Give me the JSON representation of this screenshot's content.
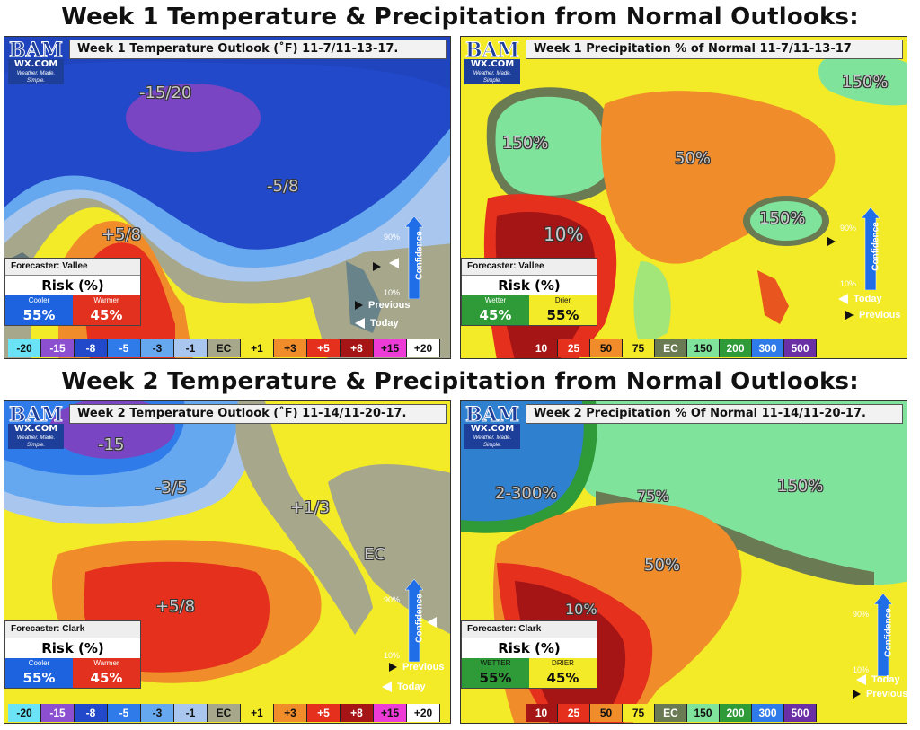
{
  "headings": {
    "week1": "Week 1 Temperature & Precipitation from Normal Outlooks:",
    "week2": "Week 2 Temperature & Precipitation from Normal Outlooks:"
  },
  "logo": {
    "letters": "BAM",
    "wx": "WX.COM",
    "tagline": "Weather. Made. Simple."
  },
  "confidence": {
    "label": "Confidence",
    "high": "90%",
    "low": "10%",
    "previous": "Previous",
    "today": "Today"
  },
  "panels": {
    "w1temp": {
      "title": "Week 1 Temperature Outlook (˚F) 11-7/11-13-17.",
      "labels": [
        "-15/20",
        "-5/8",
        "+5/8"
      ],
      "forecaster": "Forecaster: Vallee",
      "risk_title": "Risk (%)",
      "risk": [
        {
          "label": "Cooler",
          "value": "55%",
          "color": "#1d63e0"
        },
        {
          "label": "Warmer",
          "value": "45%",
          "color": "#e2321f"
        }
      ],
      "legend": [
        "-20",
        "-15",
        "-8",
        "-5",
        "-3",
        "-1",
        "EC",
        "+1",
        "+3",
        "+5",
        "+8",
        "+15",
        "+20"
      ],
      "legend_colors": [
        "#69e3f5",
        "#8b4fd0",
        "#2149c9",
        "#2f7bea",
        "#66a8f0",
        "#a9c6ee",
        "#a7a88b",
        "#f3ea28",
        "#f08c2a",
        "#e5301d",
        "#a61515",
        "#ec3bd7",
        "#ffffff"
      ]
    },
    "w1precip": {
      "title": "Week 1 Precipitation % of Normal 11-7/11-13-17",
      "labels": [
        "150%",
        "150%",
        "50%",
        "10%",
        "150%"
      ],
      "forecaster": "Forecaster: Vallee",
      "risk_title": "Risk (%)",
      "risk": [
        {
          "label": "Wetter",
          "value": "45%",
          "color": "#2e9a38"
        },
        {
          "label": "Drier",
          "value": "55%",
          "color": "#f3ea28"
        }
      ],
      "legend": [
        "10",
        "25",
        "50",
        "75",
        "EC",
        "150",
        "200",
        "300",
        "500"
      ],
      "legend_colors": [
        "#a61515",
        "#e5301d",
        "#f08c2a",
        "#f3ea28",
        "#6a7a52",
        "#7fe39b",
        "#2e9a38",
        "#2f7bea",
        "#6a2fa5"
      ]
    },
    "w2temp": {
      "title": "Week 2 Temperature Outlook (˚F) 11-14/11-20-17.",
      "labels": [
        "-15",
        "-3/5",
        "+1/3",
        "EC",
        "+5/8"
      ],
      "forecaster": "Forecaster: Clark",
      "risk_title": "Risk (%)",
      "risk": [
        {
          "label": "Cooler",
          "value": "55%",
          "color": "#1d63e0"
        },
        {
          "label": "Warmer",
          "value": "45%",
          "color": "#e2321f"
        }
      ],
      "legend": [
        "-20",
        "-15",
        "-8",
        "-5",
        "-3",
        "-1",
        "EC",
        "+1",
        "+3",
        "+5",
        "+8",
        "+15",
        "+20"
      ],
      "legend_colors": [
        "#69e3f5",
        "#8b4fd0",
        "#2149c9",
        "#2f7bea",
        "#66a8f0",
        "#a9c6ee",
        "#a7a88b",
        "#f3ea28",
        "#f08c2a",
        "#e5301d",
        "#a61515",
        "#ec3bd7",
        "#ffffff"
      ]
    },
    "w2precip": {
      "title": "Week 2 Precipitation % Of Normal 11-14/11-20-17.",
      "labels": [
        "2-300%",
        "75%",
        "150%",
        "50%",
        "10%"
      ],
      "forecaster": "Forecaster: Clark",
      "risk_title": "Risk (%)",
      "risk": [
        {
          "label": "WETTER",
          "value": "55%",
          "color": "#2e9a38"
        },
        {
          "label": "DRIER",
          "value": "45%",
          "color": "#f3ea28"
        }
      ],
      "legend": [
        "10",
        "25",
        "50",
        "75",
        "EC",
        "150",
        "200",
        "300",
        "500"
      ],
      "legend_colors": [
        "#a61515",
        "#e5301d",
        "#f08c2a",
        "#f3ea28",
        "#6a7a52",
        "#7fe39b",
        "#2e9a38",
        "#2f7bea",
        "#6a2fa5"
      ]
    }
  }
}
